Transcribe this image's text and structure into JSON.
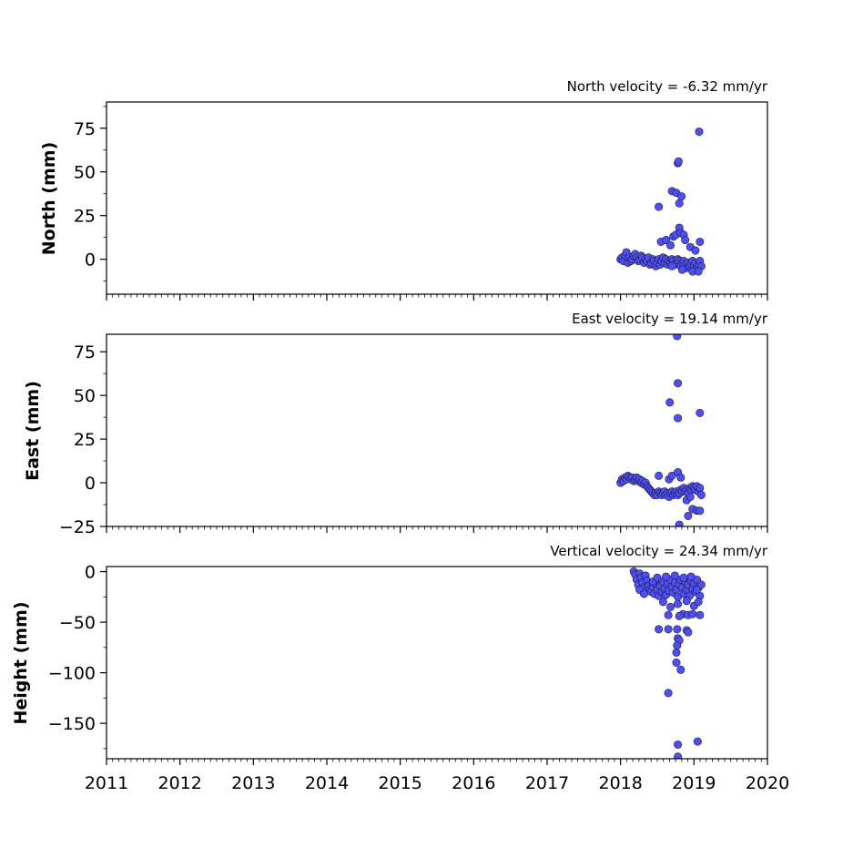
{
  "chart_data": [
    {
      "type": "scatter",
      "title": "North velocity = -6.32 mm/yr",
      "ylabel": "North (mm)",
      "xlim": [
        2011,
        2020
      ],
      "ylim": [
        -20,
        90
      ],
      "yticks": [
        "75",
        "50",
        "25",
        "0"
      ],
      "ytick_values": [
        75,
        50,
        25,
        0
      ],
      "series": [
        {
          "color": "#4f4ff0",
          "points": [
            [
              2018.0,
              0
            ],
            [
              2018.02,
              1
            ],
            [
              2018.04,
              -1
            ],
            [
              2018.06,
              2
            ],
            [
              2018.08,
              4
            ],
            [
              2018.1,
              -2
            ],
            [
              2018.12,
              1
            ],
            [
              2018.14,
              -1
            ],
            [
              2018.16,
              0
            ],
            [
              2018.18,
              2
            ],
            [
              2018.2,
              3
            ],
            [
              2018.22,
              1
            ],
            [
              2018.24,
              -1
            ],
            [
              2018.26,
              0
            ],
            [
              2018.28,
              2
            ],
            [
              2018.3,
              1
            ],
            [
              2018.32,
              -2
            ],
            [
              2018.34,
              0
            ],
            [
              2018.36,
              -1
            ],
            [
              2018.38,
              1
            ],
            [
              2018.4,
              -3
            ],
            [
              2018.42,
              -2
            ],
            [
              2018.44,
              0
            ],
            [
              2018.46,
              -1
            ],
            [
              2018.48,
              -4
            ],
            [
              2018.5,
              -2
            ],
            [
              2018.52,
              0
            ],
            [
              2018.54,
              -3
            ],
            [
              2018.56,
              -1
            ],
            [
              2018.58,
              1
            ],
            [
              2018.6,
              -2
            ],
            [
              2018.62,
              0
            ],
            [
              2018.64,
              -3
            ],
            [
              2018.66,
              -1
            ],
            [
              2018.68,
              -2
            ],
            [
              2018.7,
              0
            ],
            [
              2018.72,
              -1
            ],
            [
              2018.74,
              -3
            ],
            [
              2018.76,
              -2
            ],
            [
              2018.78,
              0
            ],
            [
              2018.8,
              -1
            ],
            [
              2018.82,
              -4
            ],
            [
              2018.84,
              -2
            ],
            [
              2018.86,
              -1
            ],
            [
              2018.88,
              -3
            ],
            [
              2018.9,
              -5
            ],
            [
              2018.92,
              -2
            ],
            [
              2018.94,
              -4
            ],
            [
              2018.96,
              -3
            ],
            [
              2018.98,
              -1
            ],
            [
              2019.0,
              -4
            ],
            [
              2019.02,
              -2
            ],
            [
              2019.04,
              -5
            ],
            [
              2019.06,
              -3
            ],
            [
              2019.08,
              -1
            ],
            [
              2019.1,
              -4
            ],
            [
              2018.55,
              10
            ],
            [
              2018.62,
              11
            ],
            [
              2018.68,
              8
            ],
            [
              2018.72,
              13
            ],
            [
              2018.75,
              14
            ],
            [
              2018.8,
              18
            ],
            [
              2018.82,
              15
            ],
            [
              2018.86,
              14
            ],
            [
              2018.88,
              11
            ],
            [
              2018.95,
              7
            ],
            [
              2019.02,
              5
            ],
            [
              2019.08,
              10
            ],
            [
              2018.7,
              -4
            ],
            [
              2018.84,
              -6
            ],
            [
              2018.98,
              -7
            ],
            [
              2019.06,
              -7
            ],
            [
              2018.52,
              30
            ],
            [
              2018.7,
              39
            ],
            [
              2018.76,
              38
            ],
            [
              2018.8,
              32
            ],
            [
              2018.83,
              36
            ],
            [
              2018.78,
              55
            ],
            [
              2018.79,
              56
            ],
            [
              2019.07,
              73
            ]
          ]
        }
      ]
    },
    {
      "type": "scatter",
      "title": "East velocity = 19.14 mm/yr",
      "ylabel": "East (mm)",
      "xlim": [
        2011,
        2020
      ],
      "ylim": [
        -25,
        85
      ],
      "yticks": [
        "75",
        "50",
        "25",
        "0",
        "−25"
      ],
      "ytick_values": [
        75,
        50,
        25,
        0,
        -25
      ],
      "series": [
        {
          "color": "#4f4ff0",
          "points": [
            [
              2018.0,
              0
            ],
            [
              2018.02,
              2
            ],
            [
              2018.04,
              1
            ],
            [
              2018.06,
              3
            ],
            [
              2018.08,
              2
            ],
            [
              2018.1,
              4
            ],
            [
              2018.12,
              3
            ],
            [
              2018.14,
              2
            ],
            [
              2018.16,
              3
            ],
            [
              2018.18,
              1
            ],
            [
              2018.2,
              2
            ],
            [
              2018.22,
              3
            ],
            [
              2018.24,
              1
            ],
            [
              2018.26,
              2
            ],
            [
              2018.28,
              0
            ],
            [
              2018.3,
              1
            ],
            [
              2018.32,
              -1
            ],
            [
              2018.34,
              0
            ],
            [
              2018.36,
              -2
            ],
            [
              2018.38,
              -3
            ],
            [
              2018.4,
              -4
            ],
            [
              2018.42,
              -5
            ],
            [
              2018.44,
              -6
            ],
            [
              2018.46,
              -7
            ],
            [
              2018.48,
              -6
            ],
            [
              2018.5,
              -7
            ],
            [
              2018.52,
              -5
            ],
            [
              2018.54,
              -6
            ],
            [
              2018.56,
              -7
            ],
            [
              2018.58,
              -6
            ],
            [
              2018.6,
              -5
            ],
            [
              2018.62,
              -7
            ],
            [
              2018.64,
              -6
            ],
            [
              2018.66,
              -8
            ],
            [
              2018.68,
              -6
            ],
            [
              2018.7,
              -5
            ],
            [
              2018.72,
              -7
            ],
            [
              2018.74,
              -6
            ],
            [
              2018.76,
              -5
            ],
            [
              2018.78,
              -7
            ],
            [
              2018.8,
              -6
            ],
            [
              2018.82,
              -4
            ],
            [
              2018.84,
              -5
            ],
            [
              2018.86,
              -3
            ],
            [
              2018.88,
              -5
            ],
            [
              2018.9,
              -4
            ],
            [
              2018.92,
              -6
            ],
            [
              2018.94,
              -3
            ],
            [
              2018.96,
              -4
            ],
            [
              2018.98,
              -2
            ],
            [
              2019.0,
              -3
            ],
            [
              2019.02,
              -4
            ],
            [
              2019.04,
              -2
            ],
            [
              2019.06,
              -5
            ],
            [
              2019.08,
              -3
            ],
            [
              2019.1,
              -7
            ],
            [
              2018.52,
              4
            ],
            [
              2018.66,
              2
            ],
            [
              2018.7,
              4
            ],
            [
              2018.78,
              6
            ],
            [
              2018.82,
              3
            ],
            [
              2018.9,
              -10
            ],
            [
              2018.95,
              -8
            ],
            [
              2018.98,
              -15
            ],
            [
              2019.04,
              -16
            ],
            [
              2018.92,
              -19
            ],
            [
              2019.08,
              -16
            ],
            [
              2018.8,
              -24
            ],
            [
              2018.67,
              46
            ],
            [
              2018.78,
              37
            ],
            [
              2018.78,
              57
            ],
            [
              2019.08,
              40
            ],
            [
              2018.77,
              84
            ]
          ]
        }
      ]
    },
    {
      "type": "scatter",
      "title": "Vertical velocity = 24.34 mm/yr",
      "ylabel": "Height (mm)",
      "xlim": [
        2011,
        2020
      ],
      "ylim": [
        -185,
        5
      ],
      "yticks": [
        "0",
        "−50",
        "−100",
        "−150"
      ],
      "ytick_values": [
        0,
        -50,
        -100,
        -150
      ],
      "series": [
        {
          "color": "#4f4ff0",
          "points": [
            [
              2018.18,
              0
            ],
            [
              2018.2,
              -3
            ],
            [
              2018.22,
              -8
            ],
            [
              2018.24,
              -13
            ],
            [
              2018.26,
              -2
            ],
            [
              2018.28,
              -6
            ],
            [
              2018.3,
              -11
            ],
            [
              2018.32,
              -16
            ],
            [
              2018.34,
              -4
            ],
            [
              2018.36,
              -9
            ],
            [
              2018.38,
              -14
            ],
            [
              2018.4,
              -18
            ],
            [
              2018.42,
              -20
            ],
            [
              2018.44,
              -15
            ],
            [
              2018.46,
              -22
            ],
            [
              2018.48,
              -12
            ],
            [
              2018.5,
              -18
            ],
            [
              2018.52,
              -24
            ],
            [
              2018.54,
              -14
            ],
            [
              2018.56,
              -20
            ],
            [
              2018.58,
              -10
            ],
            [
              2018.6,
              -17
            ],
            [
              2018.62,
              -23
            ],
            [
              2018.64,
              -12
            ],
            [
              2018.66,
              -19
            ],
            [
              2018.68,
              -8
            ],
            [
              2018.7,
              -15
            ],
            [
              2018.72,
              -21
            ],
            [
              2018.74,
              -11
            ],
            [
              2018.76,
              -18
            ],
            [
              2018.78,
              -25
            ],
            [
              2018.8,
              -13
            ],
            [
              2018.82,
              -8
            ],
            [
              2018.84,
              -16
            ],
            [
              2018.86,
              -22
            ],
            [
              2018.88,
              -10
            ],
            [
              2018.9,
              -18
            ],
            [
              2018.92,
              -13
            ],
            [
              2018.94,
              -24
            ],
            [
              2018.96,
              -9
            ],
            [
              2018.98,
              -17
            ],
            [
              2019.0,
              -12
            ],
            [
              2019.02,
              -20
            ],
            [
              2019.04,
              -8
            ],
            [
              2019.06,
              -16
            ],
            [
              2019.08,
              -24
            ],
            [
              2019.1,
              -13
            ],
            [
              2018.26,
              -18
            ],
            [
              2018.32,
              -22
            ],
            [
              2018.44,
              -10
            ],
            [
              2018.5,
              -6
            ],
            [
              2018.62,
              -5
            ],
            [
              2018.74,
              -4
            ],
            [
              2018.86,
              -6
            ],
            [
              2018.96,
              -5
            ],
            [
              2019.04,
              -18
            ],
            [
              2018.58,
              -30
            ],
            [
              2018.78,
              -32
            ],
            [
              2018.9,
              -29
            ],
            [
              2019.0,
              -34
            ],
            [
              2019.06,
              -30
            ],
            [
              2018.68,
              -35
            ],
            [
              2018.85,
              -42
            ],
            [
              2018.65,
              -43
            ],
            [
              2018.92,
              -43
            ],
            [
              2018.98,
              -42
            ],
            [
              2019.08,
              -43
            ],
            [
              2018.8,
              -44
            ],
            [
              2018.52,
              -57
            ],
            [
              2018.65,
              -57
            ],
            [
              2018.77,
              -57
            ],
            [
              2018.9,
              -58
            ],
            [
              2018.92,
              -60
            ],
            [
              2018.78,
              -66
            ],
            [
              2018.8,
              -68
            ],
            [
              2018.77,
              -73
            ],
            [
              2018.76,
              -80
            ],
            [
              2018.76,
              -90
            ],
            [
              2018.82,
              -97
            ],
            [
              2018.65,
              -120
            ],
            [
              2019.05,
              -168
            ],
            [
              2018.78,
              -171
            ],
            [
              2018.78,
              -183
            ]
          ]
        }
      ]
    }
  ],
  "x_tick_labels": [
    "2011",
    "2012",
    "2013",
    "2014",
    "2015",
    "2016",
    "2017",
    "2018",
    "2019",
    "2020"
  ],
  "x_tick_values": [
    2011,
    2012,
    2013,
    2014,
    2015,
    2016,
    2017,
    2018,
    2019,
    2020
  ]
}
